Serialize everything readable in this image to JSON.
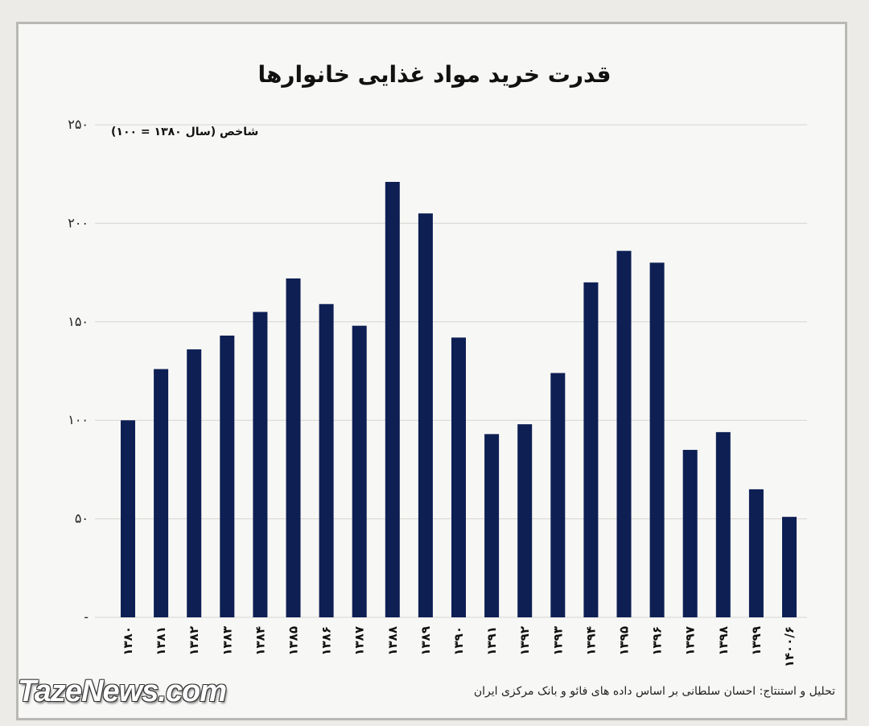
{
  "chart_data": {
    "type": "bar",
    "title": "قدرت خرید مواد غذایی خانوارها",
    "ylabel": "شاخص (سال ۱۳۸۰ = ۱۰۰)",
    "categories": [
      "۱۳۸۰",
      "۱۳۸۱",
      "۱۳۸۲",
      "۱۳۸۳",
      "۱۳۸۴",
      "۱۳۸۵",
      "۱۳۸۶",
      "۱۳۸۷",
      "۱۳۸۸",
      "۱۳۸۹",
      "۱۳۹۰",
      "۱۳۹۱",
      "۱۳۹۲",
      "۱۳۹۳",
      "۱۳۹۴",
      "۱۳۹۵",
      "۱۳۹۶",
      "۱۳۹۷",
      "۱۳۹۸",
      "۱۳۹۹",
      "۱۴۰۰/۶"
    ],
    "values": [
      100,
      126,
      136,
      143,
      155,
      172,
      159,
      148,
      221,
      205,
      142,
      93,
      98,
      124,
      170,
      186,
      180,
      85,
      94,
      65,
      51
    ],
    "ylim": [
      0,
      250
    ],
    "yticks": [
      0,
      50,
      100,
      150,
      200,
      250
    ],
    "ytick_labels": [
      "-",
      "۵۰",
      "۱۰۰",
      "۱۵۰",
      "۲۰۰",
      "۲۵۰"
    ],
    "grid": true,
    "bar_color": "#0e1f54"
  },
  "source": "تحلیل و استنتاج: احسان سلطانی بر اساس داده های فائو و بانک مرکزی ایران",
  "watermark": "TazeNews.com"
}
